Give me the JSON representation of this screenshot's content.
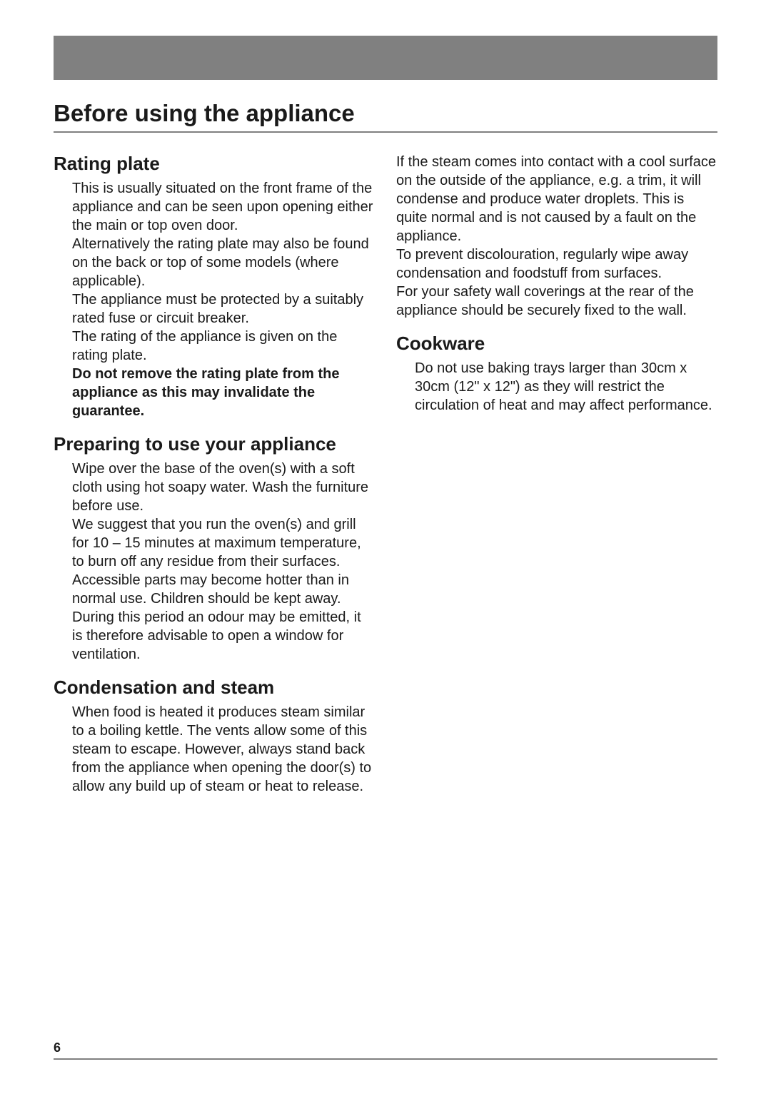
{
  "page": {
    "title": "Before using the appliance",
    "pageNumber": "6",
    "headerBarColor": "#808080",
    "ruleColor": "#808080",
    "backgroundColor": "#ffffff",
    "textColor": "#1a1a1a",
    "titleFontSize": 33,
    "headingFontSize": 26,
    "bodyFontSize": 20
  },
  "leftColumn": {
    "section1": {
      "heading": "Rating plate",
      "p1": "This is usually situated on the front frame of the appliance and can be seen upon opening either the main or top oven door.",
      "p2": "Alternatively the rating plate may also be found on the back or top of some models (where applicable).",
      "p3": "The appliance must be protected by a suitably rated fuse or circuit breaker.",
      "p4": "The rating of the appliance is given on the rating plate.",
      "p5_bold": "Do not remove the rating plate from the appliance as this may invalidate the guarantee."
    },
    "section2": {
      "heading": "Preparing to use your appliance",
      "p1": "Wipe over the base of the oven(s) with a soft cloth using hot soapy water. Wash the furniture before use.",
      "p2": "We suggest that you run the oven(s) and grill for 10 – 15 minutes at maximum temperature, to burn off any residue from their surfaces. Accessible parts may become hotter than in normal use. Children should be kept away. During this period an odour may be emitted, it is therefore advisable to open a window for ventilation."
    },
    "section3": {
      "heading": "Condensation and steam",
      "p1": "When food is heated it produces steam similar to a boiling kettle.  The vents allow some of this steam to escape. However, always stand back from the appliance when opening the door(s) to allow any build up of steam or heat to release."
    }
  },
  "rightColumn": {
    "continuation": {
      "p1": "If the steam comes into contact with a cool surface on the outside of the appliance, e.g. a trim, it will condense and produce water droplets.  This is quite normal and is not caused by a fault on the appliance.",
      "p2": "To prevent discolouration, regularly wipe away condensation and foodstuff from surfaces.",
      "p3": "For your safety wall coverings at the rear of the appliance should be securely fixed to the wall."
    },
    "section1": {
      "heading": "Cookware",
      "p1": "Do not use baking trays larger than 30cm x 30cm (12\" x 12\") as they will restrict the circulation of heat and may affect performance."
    }
  }
}
